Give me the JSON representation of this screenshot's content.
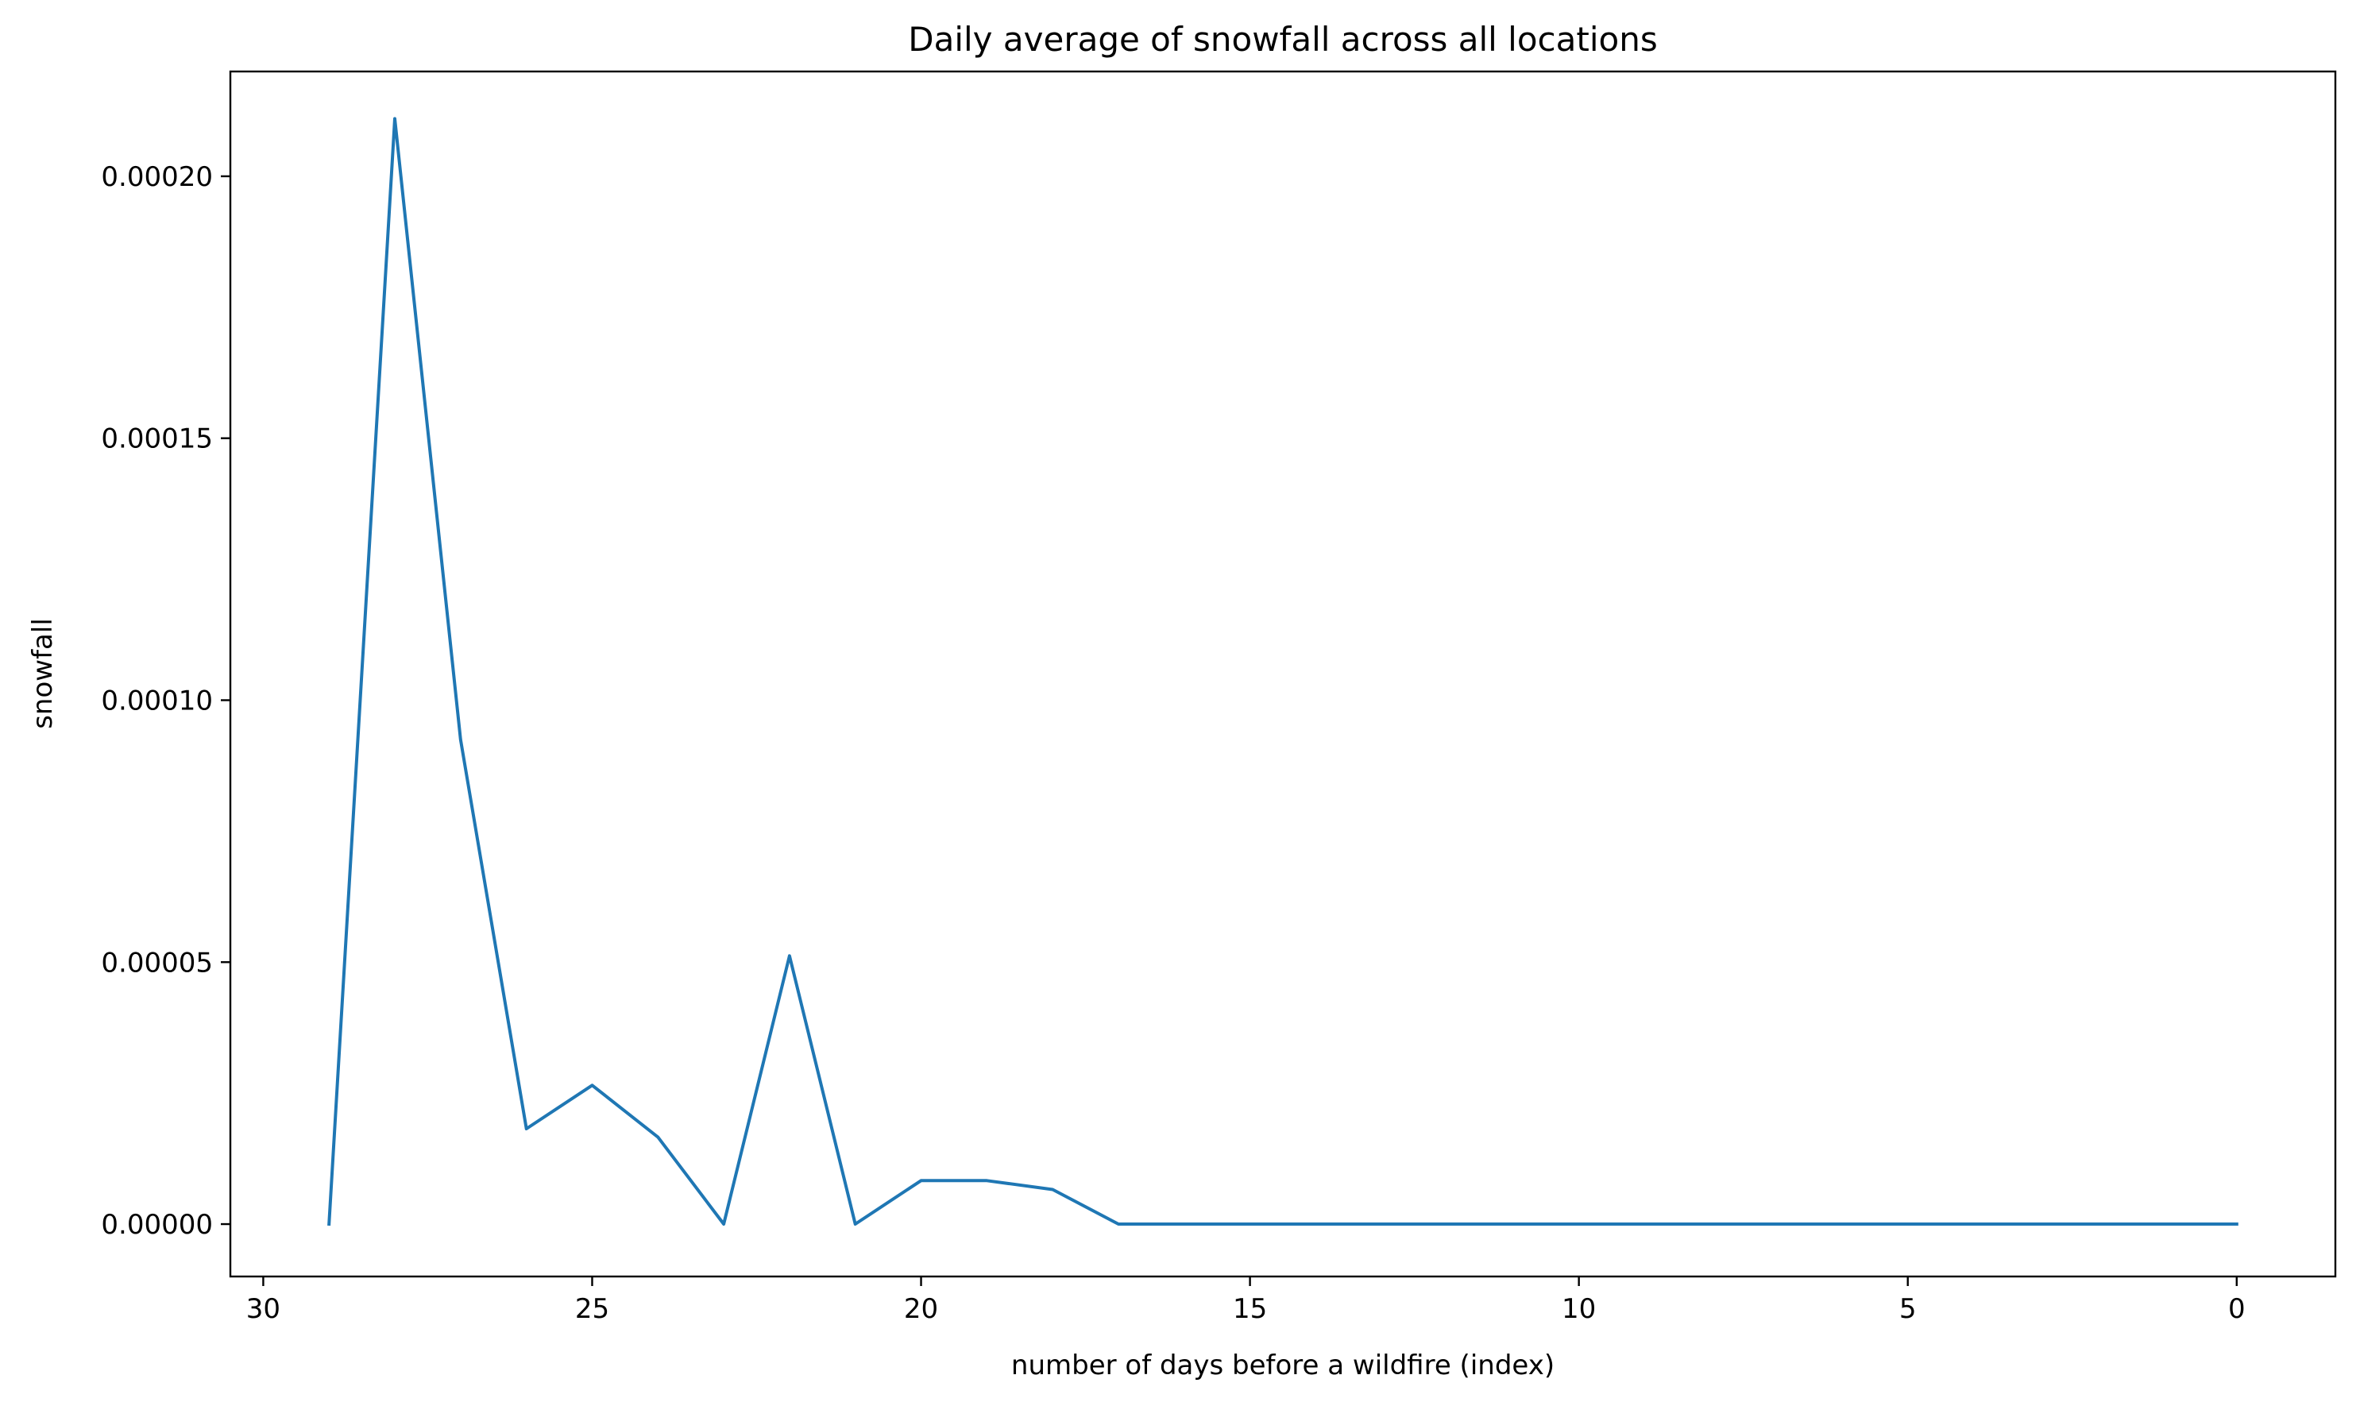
{
  "chart_data": {
    "type": "line",
    "title": "Daily average of snowfall across all locations",
    "xlabel": "number of days before a wildfire (index)",
    "ylabel": "snowfall",
    "x_inverted": true,
    "xlim": [
      30.5,
      -1.5
    ],
    "ylim": [
      -1e-05,
      0.00022
    ],
    "xticks": [
      30,
      25,
      20,
      15,
      10,
      5,
      0
    ],
    "yticks": [
      0,
      5e-05,
      0.0001,
      0.00015,
      0.0002
    ],
    "xtick_labels": [
      "30",
      "25",
      "20",
      "15",
      "10",
      "5",
      "0"
    ],
    "ytick_labels": [
      "0.00000",
      "0.00005",
      "0.00010",
      "0.00015",
      "0.00020"
    ],
    "grid": false,
    "color": "#1f77b4",
    "series": [
      {
        "x": [
          29,
          28,
          27,
          26,
          25,
          24,
          23,
          22,
          21,
          20,
          19,
          18,
          17,
          16,
          15,
          14,
          13,
          12,
          11,
          10,
          9,
          8,
          7,
          6,
          5,
          4,
          3,
          2,
          1,
          0
        ],
        "values": [
          0,
          0.000211,
          9.25e-05,
          1.82e-05,
          2.65e-05,
          1.66e-05,
          0,
          5.12e-05,
          0,
          8.3e-06,
          8.3e-06,
          6.6e-06,
          0,
          0,
          0,
          0,
          0,
          0,
          0,
          0,
          0,
          0,
          0,
          0,
          0,
          0,
          0,
          0,
          0,
          0
        ]
      }
    ]
  }
}
